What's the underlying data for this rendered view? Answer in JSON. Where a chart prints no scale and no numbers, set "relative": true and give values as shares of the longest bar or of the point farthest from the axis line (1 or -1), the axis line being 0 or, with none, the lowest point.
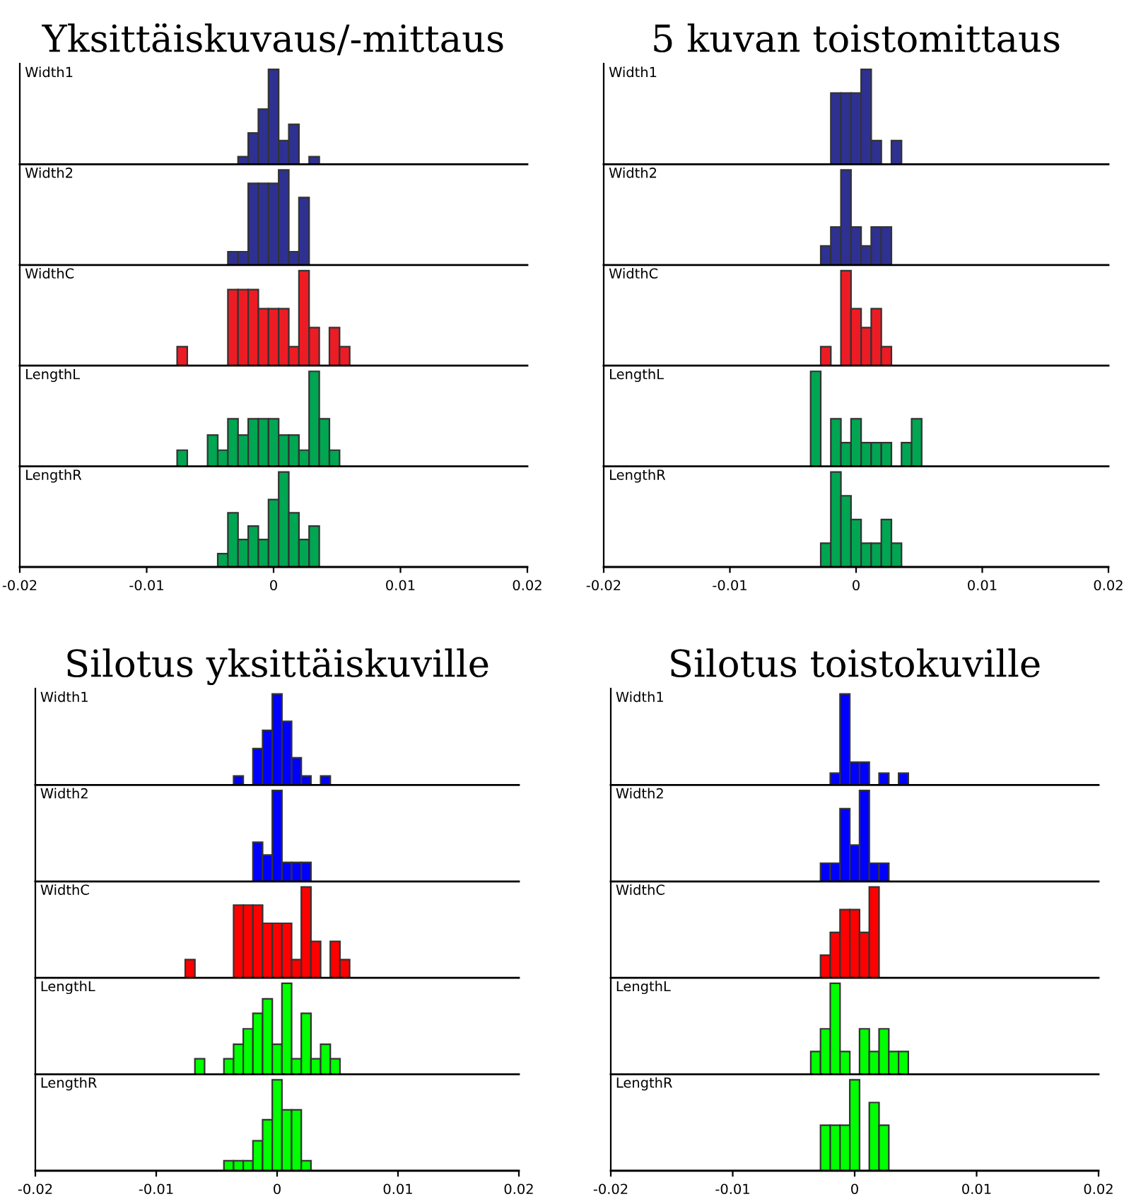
{
  "chart_data": [
    {
      "type": "bar",
      "relative": true,
      "title": "Yksittäiskuvaus/-mittaus",
      "annotations": [
        "Width1"
      ],
      "color": "#2e3192",
      "x": [
        -0.008,
        -0.0072,
        -0.0064,
        -0.0056,
        -0.0048,
        -0.004,
        -0.0032,
        -0.0024,
        -0.0016,
        -0.0008,
        0,
        0.0008,
        0.0016,
        0.0024,
        0.0032,
        0.004,
        0.0048,
        0.0056
      ],
      "values": [
        0,
        0,
        0,
        0,
        0,
        0,
        0,
        0.08,
        0.33,
        0.58,
        1,
        0.25,
        0.42,
        0,
        0.08,
        0,
        0,
        0
      ],
      "xlim": [
        -0.02,
        0.02
      ],
      "xticks": [
        -0.02,
        -0.01,
        0,
        0.01,
        0.02
      ],
      "tick_labels": false
    },
    {
      "type": "bar",
      "relative": true,
      "annotations": [
        "Width2"
      ],
      "color": "#2e3192",
      "x": [
        -0.008,
        -0.0072,
        -0.0064,
        -0.0056,
        -0.0048,
        -0.004,
        -0.0032,
        -0.0024,
        -0.0016,
        -0.0008,
        0,
        0.0008,
        0.0016,
        0.0024,
        0.0032,
        0.004,
        0.0048,
        0.0056
      ],
      "values": [
        0,
        0,
        0,
        0,
        0,
        0,
        0.14,
        0.14,
        0.86,
        0.86,
        0.86,
        1,
        0.14,
        0.71,
        0,
        0,
        0,
        0
      ],
      "xlim": [
        -0.02,
        0.02
      ],
      "xticks": [
        -0.02,
        -0.01,
        0,
        0.01,
        0.02
      ],
      "tick_labels": false
    },
    {
      "type": "bar",
      "relative": true,
      "annotations": [
        "WidthC"
      ],
      "color": "#ed1c24",
      "x": [
        -0.008,
        -0.0072,
        -0.0064,
        -0.0056,
        -0.0048,
        -0.004,
        -0.0032,
        -0.0024,
        -0.0016,
        -0.0008,
        0,
        0.0008,
        0.0016,
        0.0024,
        0.0032,
        0.004,
        0.0048,
        0.0056
      ],
      "values": [
        0,
        0.2,
        0,
        0,
        0,
        0,
        0.8,
        0.8,
        0.8,
        0.6,
        0.6,
        0.6,
        0.2,
        1,
        0.4,
        0,
        0.4,
        0.2
      ],
      "xlim": [
        -0.02,
        0.02
      ],
      "xticks": [
        -0.02,
        -0.01,
        0,
        0.01,
        0.02
      ],
      "tick_labels": false
    },
    {
      "type": "bar",
      "relative": true,
      "annotations": [
        "LengthL"
      ],
      "color": "#00a651",
      "x": [
        -0.008,
        -0.0072,
        -0.0064,
        -0.0056,
        -0.0048,
        -0.004,
        -0.0032,
        -0.0024,
        -0.0016,
        -0.0008,
        0,
        0.0008,
        0.0016,
        0.0024,
        0.0032,
        0.004,
        0.0048,
        0.0056
      ],
      "values": [
        0,
        0.17,
        0,
        0,
        0.33,
        0.17,
        0.5,
        0.33,
        0.5,
        0.5,
        0.5,
        0.33,
        0.33,
        0.17,
        1,
        0.5,
        0.17,
        0
      ],
      "xlim": [
        -0.02,
        0.02
      ],
      "xticks": [
        -0.02,
        -0.01,
        0,
        0.01,
        0.02
      ],
      "tick_labels": false
    },
    {
      "type": "bar",
      "relative": true,
      "annotations": [
        "LengthR"
      ],
      "color": "#00a651",
      "x": [
        -0.008,
        -0.0072,
        -0.0064,
        -0.0056,
        -0.0048,
        -0.004,
        -0.0032,
        -0.0024,
        -0.0016,
        -0.0008,
        0,
        0.0008,
        0.0016,
        0.0024,
        0.0032,
        0.004,
        0.0048,
        0.0056
      ],
      "values": [
        0,
        0,
        0,
        0,
        0,
        0.14,
        0.57,
        0.29,
        0.43,
        0.29,
        0.71,
        1,
        0.57,
        0.29,
        0.43,
        0,
        0,
        0
      ],
      "xlim": [
        -0.02,
        0.02
      ],
      "xticks": [
        -0.02,
        -0.01,
        0,
        0.01,
        0.02
      ],
      "tick_labels": "x"
    },
    {
      "type": "bar",
      "relative": true,
      "title": "5 kuvan toistomittaus",
      "annotations": [
        "Width1"
      ],
      "color": "#2e3192",
      "x": [
        -0.008,
        -0.0072,
        -0.0064,
        -0.0056,
        -0.0048,
        -0.004,
        -0.0032,
        -0.0024,
        -0.0016,
        -0.0008,
        0,
        0.0008,
        0.0016,
        0.0024,
        0.0032,
        0.004,
        0.0048,
        0.0056
      ],
      "values": [
        0,
        0,
        0,
        0,
        0,
        0,
        0,
        0,
        0.75,
        0.75,
        0.75,
        1,
        0.25,
        0,
        0.25,
        0,
        0,
        0
      ],
      "xlim": [
        -0.02,
        0.02
      ],
      "xticks": [
        -0.02,
        -0.01,
        0,
        0.01,
        0.02
      ],
      "tick_labels": false
    },
    {
      "type": "bar",
      "relative": true,
      "annotations": [
        "Width2"
      ],
      "color": "#2e3192",
      "x": [
        -0.008,
        -0.0072,
        -0.0064,
        -0.0056,
        -0.0048,
        -0.004,
        -0.0032,
        -0.0024,
        -0.0016,
        -0.0008,
        0,
        0.0008,
        0.0016,
        0.0024,
        0.0032,
        0.004,
        0.0048,
        0.0056
      ],
      "values": [
        0,
        0,
        0,
        0,
        0,
        0,
        0,
        0.2,
        0.4,
        1,
        0.4,
        0.2,
        0.4,
        0.4,
        0,
        0,
        0,
        0
      ],
      "xlim": [
        -0.02,
        0.02
      ],
      "xticks": [
        -0.02,
        -0.01,
        0,
        0.01,
        0.02
      ],
      "tick_labels": false
    },
    {
      "type": "bar",
      "relative": true,
      "annotations": [
        "WidthC"
      ],
      "color": "#ed1c24",
      "x": [
        -0.008,
        -0.0072,
        -0.0064,
        -0.0056,
        -0.0048,
        -0.004,
        -0.0032,
        -0.0024,
        -0.0016,
        -0.0008,
        0,
        0.0008,
        0.0016,
        0.0024,
        0.0032,
        0.004,
        0.0048,
        0.0056
      ],
      "values": [
        0,
        0,
        0,
        0,
        0,
        0,
        0,
        0.2,
        0,
        1,
        0.6,
        0.4,
        0.6,
        0.2,
        0,
        0,
        0,
        0
      ],
      "xlim": [
        -0.02,
        0.02
      ],
      "xticks": [
        -0.02,
        -0.01,
        0,
        0.01,
        0.02
      ],
      "tick_labels": false
    },
    {
      "type": "bar",
      "relative": true,
      "annotations": [
        "LengthL"
      ],
      "color": "#00a651",
      "x": [
        -0.008,
        -0.0072,
        -0.0064,
        -0.0056,
        -0.0048,
        -0.004,
        -0.0032,
        -0.0024,
        -0.0016,
        -0.0008,
        0,
        0.0008,
        0.0016,
        0.0024,
        0.0032,
        0.004,
        0.0048,
        0.0056
      ],
      "values": [
        0,
        0,
        0,
        0,
        0,
        0,
        1,
        0,
        0.5,
        0.25,
        0.5,
        0.25,
        0.25,
        0.25,
        0,
        0.25,
        0.5,
        0
      ],
      "xlim": [
        -0.02,
        0.02
      ],
      "xticks": [
        -0.02,
        -0.01,
        0,
        0.01,
        0.02
      ],
      "tick_labels": false
    },
    {
      "type": "bar",
      "relative": true,
      "annotations": [
        "LengthR"
      ],
      "color": "#00a651",
      "x": [
        -0.008,
        -0.0072,
        -0.0064,
        -0.0056,
        -0.0048,
        -0.004,
        -0.0032,
        -0.0024,
        -0.0016,
        -0.0008,
        0,
        0.0008,
        0.0016,
        0.0024,
        0.0032,
        0.004,
        0.0048,
        0.0056
      ],
      "values": [
        0,
        0,
        0,
        0,
        0,
        0,
        0,
        0.25,
        1,
        0.75,
        0.5,
        0.25,
        0.25,
        0.5,
        0.25,
        0,
        0,
        0
      ],
      "xlim": [
        -0.02,
        0.02
      ],
      "xticks": [
        -0.02,
        -0.01,
        0,
        0.01,
        0.02
      ],
      "tick_labels": "x"
    },
    {
      "type": "bar",
      "relative": true,
      "title": "Silotus yksittäiskuville",
      "annotations": [
        "Width1"
      ],
      "color": "#0000ff",
      "x": [
        -0.008,
        -0.0072,
        -0.0064,
        -0.0056,
        -0.0048,
        -0.004,
        -0.0032,
        -0.0024,
        -0.0016,
        -0.0008,
        0,
        0.0008,
        0.0016,
        0.0024,
        0.0032,
        0.004,
        0.0048,
        0.0056
      ],
      "values": [
        0,
        0,
        0,
        0,
        0,
        0,
        0.1,
        0,
        0.4,
        0.6,
        1,
        0.7,
        0.3,
        0.1,
        0,
        0.1,
        0,
        0
      ],
      "xlim": [
        -0.02,
        0.02
      ],
      "xticks": [
        -0.02,
        -0.01,
        0,
        0.01,
        0.02
      ],
      "tick_labels": false
    },
    {
      "type": "bar",
      "relative": true,
      "annotations": [
        "Width2"
      ],
      "color": "#0000ff",
      "x": [
        -0.008,
        -0.0072,
        -0.0064,
        -0.0056,
        -0.0048,
        -0.004,
        -0.0032,
        -0.0024,
        -0.0016,
        -0.0008,
        0,
        0.0008,
        0.0016,
        0.0024,
        0.0032,
        0.004,
        0.0048,
        0.0056
      ],
      "values": [
        0,
        0,
        0,
        0,
        0,
        0,
        0,
        0,
        0.43,
        0.29,
        1,
        0.21,
        0.21,
        0.21,
        0,
        0,
        0,
        0
      ],
      "xlim": [
        -0.02,
        0.02
      ],
      "xticks": [
        -0.02,
        -0.01,
        0,
        0.01,
        0.02
      ],
      "tick_labels": false
    },
    {
      "type": "bar",
      "relative": true,
      "annotations": [
        "WidthC"
      ],
      "color": "#ff0000",
      "x": [
        -0.008,
        -0.0072,
        -0.0064,
        -0.0056,
        -0.0048,
        -0.004,
        -0.0032,
        -0.0024,
        -0.0016,
        -0.0008,
        0,
        0.0008,
        0.0016,
        0.0024,
        0.0032,
        0.004,
        0.0048,
        0.0056
      ],
      "values": [
        0,
        0.2,
        0,
        0,
        0,
        0,
        0.8,
        0.8,
        0.8,
        0.6,
        0.6,
        0.6,
        0.2,
        1,
        0.4,
        0,
        0.4,
        0.2
      ],
      "xlim": [
        -0.02,
        0.02
      ],
      "xticks": [
        -0.02,
        -0.01,
        0,
        0.01,
        0.02
      ],
      "tick_labels": false
    },
    {
      "type": "bar",
      "relative": true,
      "annotations": [
        "LengthL"
      ],
      "color": "#00ff00",
      "x": [
        -0.008,
        -0.0072,
        -0.0064,
        -0.0056,
        -0.0048,
        -0.004,
        -0.0032,
        -0.0024,
        -0.0016,
        -0.0008,
        0,
        0.0008,
        0.0016,
        0.0024,
        0.0032,
        0.004,
        0.0048,
        0.0056
      ],
      "values": [
        0,
        0,
        0.17,
        0,
        0,
        0.17,
        0.33,
        0.5,
        0.67,
        0.83,
        0.33,
        1,
        0.17,
        0.67,
        0.17,
        0.33,
        0.17,
        0
      ],
      "xlim": [
        -0.02,
        0.02
      ],
      "xticks": [
        -0.02,
        -0.01,
        0,
        0.01,
        0.02
      ],
      "tick_labels": false
    },
    {
      "type": "bar",
      "relative": true,
      "annotations": [
        "LengthR"
      ],
      "color": "#00ff00",
      "x": [
        -0.008,
        -0.0072,
        -0.0064,
        -0.0056,
        -0.0048,
        -0.004,
        -0.0032,
        -0.0024,
        -0.0016,
        -0.0008,
        0,
        0.0008,
        0.0016,
        0.0024,
        0.0032,
        0.004,
        0.0048,
        0.0056
      ],
      "values": [
        0,
        0,
        0,
        0,
        0,
        0.11,
        0.11,
        0.11,
        0.33,
        0.56,
        1,
        0.67,
        0.67,
        0.11,
        0,
        0,
        0,
        0
      ],
      "xlim": [
        -0.02,
        0.02
      ],
      "xticks": [
        -0.02,
        -0.01,
        0,
        0.01,
        0.02
      ],
      "tick_labels": "x"
    },
    {
      "type": "bar",
      "relative": true,
      "title": "Silotus toistokuville",
      "annotations": [
        "Width1"
      ],
      "color": "#0000ff",
      "x": [
        -0.008,
        -0.0072,
        -0.0064,
        -0.0056,
        -0.0048,
        -0.004,
        -0.0032,
        -0.0024,
        -0.0016,
        -0.0008,
        0,
        0.0008,
        0.0016,
        0.0024,
        0.0032,
        0.004,
        0.0048,
        0.0056
      ],
      "values": [
        0,
        0,
        0,
        0,
        0,
        0,
        0,
        0,
        0.13,
        1,
        0.25,
        0.25,
        0,
        0.13,
        0,
        0.13,
        0,
        0
      ],
      "xlim": [
        -0.02,
        0.02
      ],
      "xticks": [
        -0.02,
        -0.01,
        0,
        0.01,
        0.02
      ],
      "tick_labels": false
    },
    {
      "type": "bar",
      "relative": true,
      "annotations": [
        "Width2"
      ],
      "color": "#0000ff",
      "x": [
        -0.008,
        -0.0072,
        -0.0064,
        -0.0056,
        -0.0048,
        -0.004,
        -0.0032,
        -0.0024,
        -0.0016,
        -0.0008,
        0,
        0.0008,
        0.0016,
        0.0024,
        0.0032,
        0.004,
        0.0048,
        0.0056
      ],
      "values": [
        0,
        0,
        0,
        0,
        0,
        0,
        0,
        0.2,
        0.2,
        0.8,
        0.4,
        1,
        0.2,
        0.2,
        0,
        0,
        0,
        0
      ],
      "xlim": [
        -0.02,
        0.02
      ],
      "xticks": [
        -0.02,
        -0.01,
        0,
        0.01,
        0.02
      ],
      "tick_labels": false
    },
    {
      "type": "bar",
      "relative": true,
      "annotations": [
        "WidthC"
      ],
      "color": "#ff0000",
      "x": [
        -0.008,
        -0.0072,
        -0.0064,
        -0.0056,
        -0.0048,
        -0.004,
        -0.0032,
        -0.0024,
        -0.0016,
        -0.0008,
        0,
        0.0008,
        0.0016,
        0.0024,
        0.0032,
        0.004,
        0.0048,
        0.0056
      ],
      "values": [
        0,
        0,
        0,
        0,
        0,
        0,
        0,
        0.25,
        0.5,
        0.75,
        0.75,
        0.5,
        1,
        0,
        0,
        0,
        0,
        0
      ],
      "xlim": [
        -0.02,
        0.02
      ],
      "xticks": [
        -0.02,
        -0.01,
        0,
        0.01,
        0.02
      ],
      "tick_labels": false
    },
    {
      "type": "bar",
      "relative": true,
      "annotations": [
        "LengthL"
      ],
      "color": "#00ff00",
      "x": [
        -0.008,
        -0.0072,
        -0.0064,
        -0.0056,
        -0.0048,
        -0.004,
        -0.0032,
        -0.0024,
        -0.0016,
        -0.0008,
        0,
        0.0008,
        0.0016,
        0.0024,
        0.0032,
        0.004,
        0.0048,
        0.0056
      ],
      "values": [
        0,
        0,
        0,
        0,
        0,
        0,
        0.25,
        0.5,
        1,
        0.25,
        0,
        0.5,
        0.25,
        0.5,
        0.25,
        0.25,
        0,
        0
      ],
      "xlim": [
        -0.02,
        0.02
      ],
      "xticks": [
        -0.02,
        -0.01,
        0,
        0.01,
        0.02
      ],
      "tick_labels": false
    },
    {
      "type": "bar",
      "relative": true,
      "annotations": [
        "LengthR"
      ],
      "color": "#00ff00",
      "x": [
        -0.008,
        -0.0072,
        -0.0064,
        -0.0056,
        -0.0048,
        -0.004,
        -0.0032,
        -0.0024,
        -0.0016,
        -0.0008,
        0,
        0.0008,
        0.0016,
        0.0024,
        0.0032,
        0.004,
        0.0048,
        0.0056
      ],
      "values": [
        0,
        0,
        0,
        0,
        0,
        0,
        0,
        0.5,
        0.5,
        0.5,
        1,
        0,
        0.75,
        0.5,
        0,
        0,
        0,
        0
      ],
      "xlim": [
        -0.02,
        0.02
      ],
      "xticks": [
        -0.02,
        -0.01,
        0,
        0.01,
        0.02
      ],
      "tick_labels": "x"
    }
  ]
}
